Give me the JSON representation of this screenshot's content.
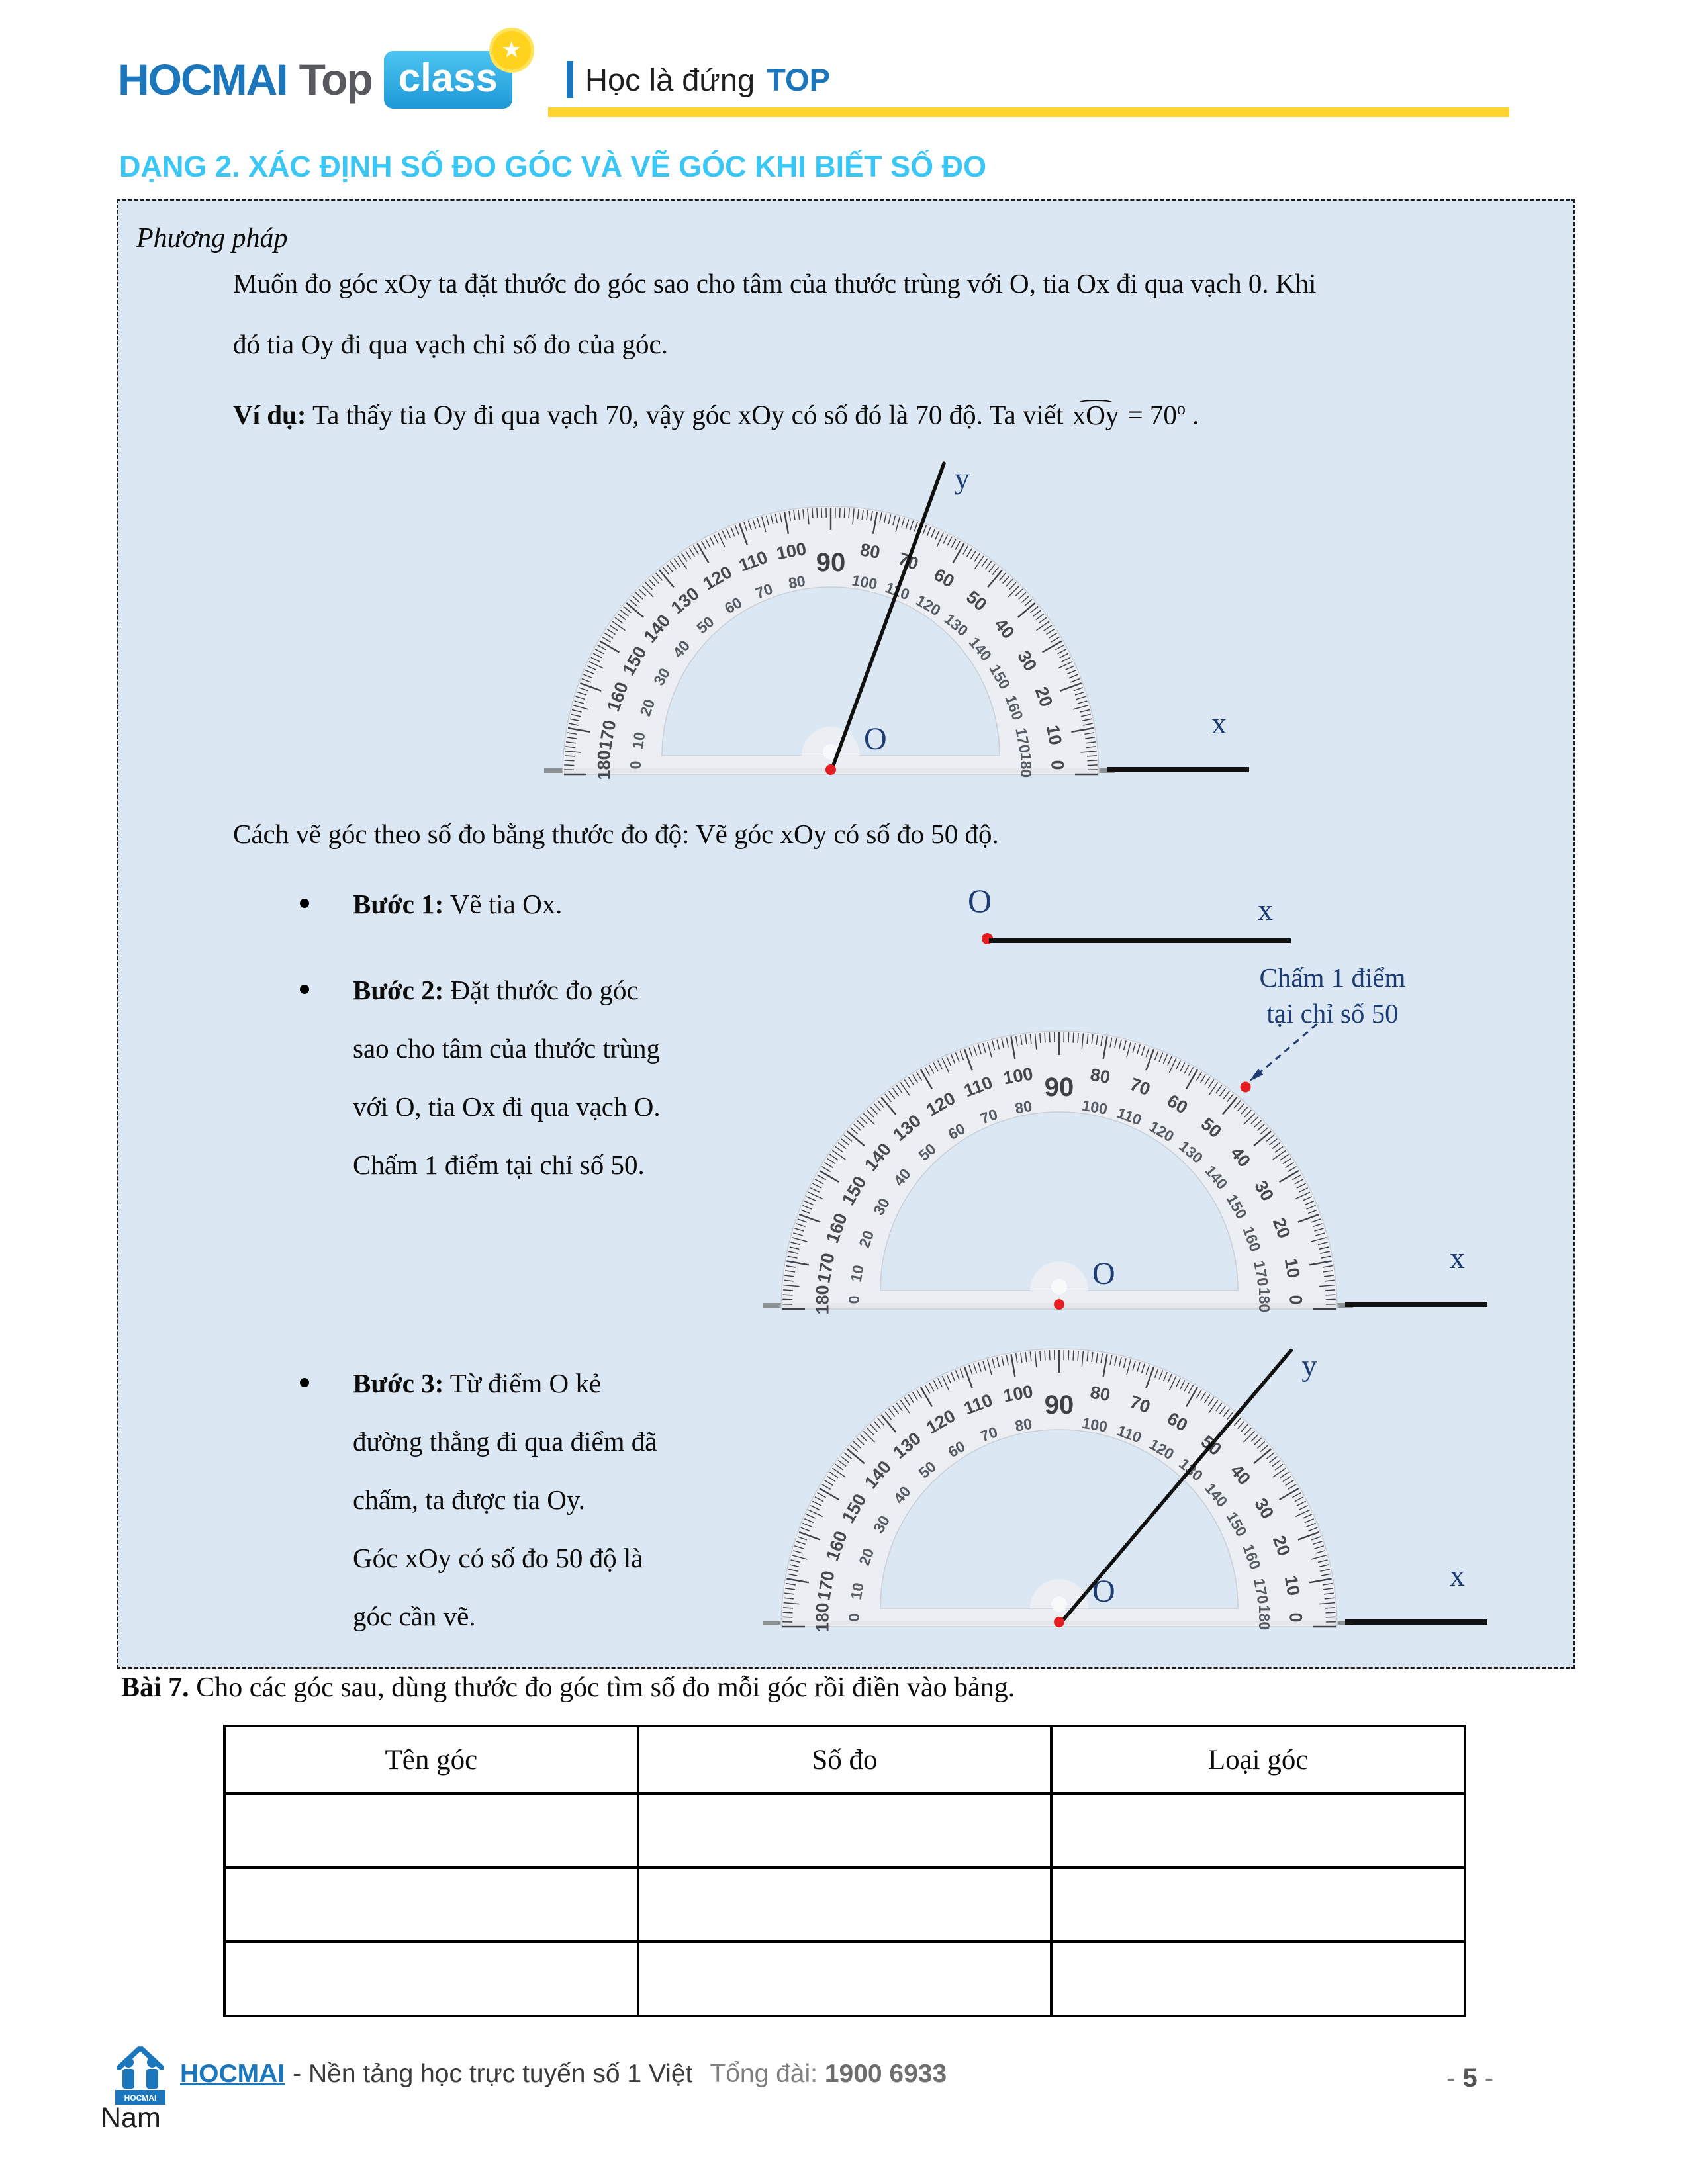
{
  "header": {
    "logo_hocmai": "HOCMAI",
    "logo_top": "Top",
    "logo_class": "class",
    "star_glyph": "★",
    "tagline": "Học là đứng",
    "tagline_bold": "TOP"
  },
  "title": "DẠNG 2. XÁC ĐỊNH SỐ ĐO GÓC VÀ VẼ GÓC KHI BIẾT SỐ ĐO",
  "method": {
    "heading": "Phương pháp",
    "para1": "Muốn đo góc xOy ta đặt thước đo góc sao cho tâm của thước trùng với O, tia Ox đi qua vạch 0. Khi\nđó tia Oy đi qua vạch chỉ số đo của góc.",
    "example_label": "Ví dụ:",
    "example_body": " Ta thấy tia Oy đi qua vạch 70, vậy góc xOy có số đó là 70 độ. Ta viết ",
    "angle_hat": "⌢",
    "angle_name": "xOy",
    "equals_value": " = 70",
    "degree_symbol": "o",
    "period": " .",
    "draw_howto": "Cách vẽ góc theo số đo bằng thước đo độ: Vẽ góc xOy có số đo 50 độ.",
    "steps": [
      {
        "label": "Bước 1:",
        "text": "Vẽ tia Ox."
      },
      {
        "label": "Bước 2:",
        "text": "Đặt thước đo góc\nsao cho tâm của thước trùng\nvới O, tia Ox đi qua vạch O.\nChấm 1 điểm tại chỉ số 50."
      },
      {
        "label": "Bước 3:",
        "text": "Từ điểm O kẻ\nđường thẳng đi qua điểm đã\nchấm, ta được tia Oy.\nGóc xOy có số đo 50 độ là\ngóc cần vẽ."
      }
    ],
    "annotation_line1": "Chấm 1 điểm",
    "annotation_line2": "tại chỉ số 50"
  },
  "step1_diagram": {
    "o_label": "O",
    "x_label": "x"
  },
  "protractor": {
    "pairs": [
      {
        "angle": 0,
        "outer": "0",
        "inner": "180"
      },
      {
        "angle": 10,
        "outer": "10",
        "inner": "170"
      },
      {
        "angle": 20,
        "outer": "20",
        "inner": "160"
      },
      {
        "angle": 30,
        "outer": "30",
        "inner": "150"
      },
      {
        "angle": 40,
        "outer": "40",
        "inner": "140"
      },
      {
        "angle": 50,
        "outer": "50",
        "inner": "130"
      },
      {
        "angle": 60,
        "outer": "60",
        "inner": "120"
      },
      {
        "angle": 70,
        "outer": "70",
        "inner": "110"
      },
      {
        "angle": 80,
        "outer": "80",
        "inner": "100"
      },
      {
        "angle": 90,
        "outer": "90",
        "inner": ""
      },
      {
        "angle": 100,
        "outer": "100",
        "inner": "80"
      },
      {
        "angle": 110,
        "outer": "110",
        "inner": "70"
      },
      {
        "angle": 120,
        "outer": "120",
        "inner": "60"
      },
      {
        "angle": 130,
        "outer": "130",
        "inner": "50"
      },
      {
        "angle": 140,
        "outer": "140",
        "inner": "40"
      },
      {
        "angle": 150,
        "outer": "150",
        "inner": "30"
      },
      {
        "angle": 160,
        "outer": "160",
        "inner": "20"
      },
      {
        "angle": 170,
        "outer": "170",
        "inner": "10"
      },
      {
        "angle": 180,
        "outer": "180",
        "inner": "0"
      }
    ]
  },
  "figures": [
    {
      "o_label": "O",
      "x_label": "x",
      "y_label": "y",
      "ray_angle": 70
    },
    {
      "o_label": "O",
      "x_label": "x",
      "dot_angle": 50
    },
    {
      "o_label": "O",
      "x_label": "x",
      "y_label": "y",
      "ray_angle": 50
    }
  ],
  "exercise": {
    "label": "Bài 7.",
    "text": " Cho các góc sau, dùng thước đo góc tìm số đo mỗi góc rồi điền vào bảng.",
    "table_headers": [
      "Tên góc",
      "Số đo",
      "Loại góc"
    ],
    "empty_rows": 3
  },
  "footer": {
    "brand": "HOCMAI",
    "text": "- Nền tảng học trực tuyến số 1 Việt",
    "hotline_label": "Tổng đài: ",
    "hotline": "1900 6933",
    "page_prefix": "- ",
    "page_number": "5",
    "page_suffix": " -",
    "wrap_text": "Nam",
    "logo_caption": "HOCMAI"
  },
  "colors": {
    "accent_cyan": "#3bc7f5",
    "brand_blue": "#1b76bc",
    "navy": "#1d3c72",
    "box_bg": "#dbe7f3",
    "yellow": "#ffd42e",
    "red": "#e41e20"
  }
}
